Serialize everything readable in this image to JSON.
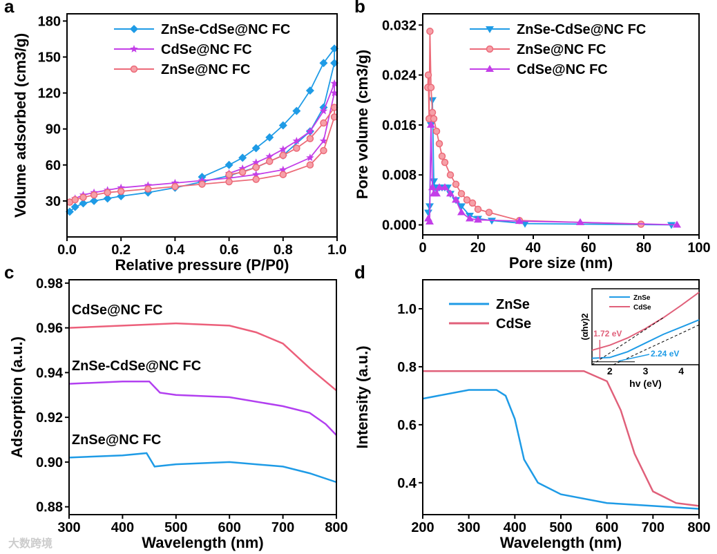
{
  "watermark": "大数跨境",
  "chart_data": [
    {
      "panel": "a",
      "type": "line",
      "xlabel": "Relative pressure (P/P0)",
      "ylabel": "Volume adsorbed (cm3/g)",
      "xlim": [
        0,
        1
      ],
      "ylim": [
        0,
        186
      ],
      "xticks": [
        0,
        0.2,
        0.4,
        0.6,
        0.8,
        1.0
      ],
      "xticklabels": [
        "0.0",
        "0.2",
        "0.4",
        "0.6",
        "0.8",
        "1.0"
      ],
      "yticks": [
        30,
        60,
        90,
        120,
        150,
        180
      ],
      "yticklabels": [
        "30",
        "60",
        "90",
        "120",
        "150",
        "180"
      ],
      "legend": "top-left",
      "series": [
        {
          "name": "ZnSe-CdSe@NC FC",
          "color": "#1e9be6",
          "marker": "diamond",
          "x": [
            0.01,
            0.03,
            0.06,
            0.1,
            0.15,
            0.2,
            0.3,
            0.4,
            0.5,
            0.6,
            0.7,
            0.8,
            0.9,
            0.95,
            0.99,
            0.99,
            0.95,
            0.9,
            0.85,
            0.8,
            0.75,
            0.7,
            0.65,
            0.6,
            0.5
          ],
          "y": [
            21,
            25,
            28,
            30,
            32,
            34,
            37,
            41,
            46,
            51,
            58,
            68,
            88,
            108,
            145,
            157,
            145,
            122,
            105,
            93,
            83,
            74,
            66,
            60,
            50
          ]
        },
        {
          "name": "CdSe@NC FC",
          "color": "#c33ee8",
          "marker": "star",
          "x": [
            0.01,
            0.03,
            0.06,
            0.1,
            0.15,
            0.2,
            0.3,
            0.4,
            0.5,
            0.6,
            0.7,
            0.8,
            0.9,
            0.95,
            0.99,
            0.99,
            0.95,
            0.9,
            0.85,
            0.8,
            0.75,
            0.7,
            0.65,
            0.6
          ],
          "y": [
            29,
            32,
            35,
            37,
            39,
            41,
            43,
            45,
            47,
            49,
            52,
            56,
            66,
            80,
            120,
            128,
            105,
            88,
            80,
            73,
            67,
            62,
            57,
            53
          ]
        },
        {
          "name": "ZnSe@NC FC",
          "color": "#ec6a78",
          "marker": "circle",
          "x": [
            0.01,
            0.03,
            0.06,
            0.1,
            0.15,
            0.2,
            0.3,
            0.4,
            0.5,
            0.6,
            0.7,
            0.8,
            0.9,
            0.95,
            0.99,
            0.99,
            0.95,
            0.9,
            0.85,
            0.8,
            0.75,
            0.7,
            0.65,
            0.6
          ],
          "y": [
            29,
            31,
            33,
            35,
            37,
            38,
            40,
            42,
            44,
            46,
            48,
            52,
            60,
            72,
            100,
            108,
            95,
            82,
            74,
            68,
            63,
            58,
            54,
            52
          ]
        }
      ]
    },
    {
      "panel": "b",
      "type": "line",
      "xlabel": "Pore size (nm)",
      "ylabel": "Pore volume (cm3/g)",
      "xlim": [
        0,
        100
      ],
      "ylim": [
        -0.0016,
        0.0338
      ],
      "xticks": [
        0,
        20,
        40,
        60,
        80,
        100
      ],
      "xticklabels": [
        "0",
        "20",
        "40",
        "60",
        "80",
        "100"
      ],
      "yticks": [
        0,
        0.008,
        0.016,
        0.024,
        0.032
      ],
      "yticklabels": [
        "0.000",
        "0.008",
        "0.016",
        "0.024",
        "0.032"
      ],
      "legend": "top-right",
      "series": [
        {
          "name": "ZnSe-CdSe@NC FC",
          "color": "#1e9be6",
          "marker": "tri-down",
          "x": [
            2,
            2.5,
            3,
            3.5,
            4,
            4.5,
            5,
            6,
            7,
            8,
            9,
            10,
            12,
            14,
            17,
            20,
            25,
            37,
            90
          ],
          "y": [
            0.002,
            0.003,
            0.016,
            0.02,
            0.007,
            0.006,
            0.006,
            0.006,
            0.006,
            0.006,
            0.006,
            0.005,
            0.004,
            0.003,
            0.0015,
            0.001,
            0.0007,
            0.0002,
            0
          ]
        },
        {
          "name": "ZnSe@NC FC",
          "color": "#ec6a78",
          "marker": "circle",
          "x": [
            1.8,
            2,
            2.3,
            2.6,
            3,
            3.5,
            4,
            5,
            6,
            7,
            8,
            10,
            12,
            14,
            16,
            18,
            20,
            24,
            35,
            79
          ],
          "y": [
            0.022,
            0.024,
            0.017,
            0.031,
            0.022,
            0.018,
            0.017,
            0.015,
            0.013,
            0.011,
            0.01,
            0.008,
            0.0065,
            0.005,
            0.004,
            0.0035,
            0.0025,
            0.002,
            0.0007,
            0.0001
          ]
        },
        {
          "name": "CdSe@NC FC",
          "color": "#c33ee8",
          "marker": "tri-up",
          "x": [
            2,
            2.5,
            3,
            3.5,
            4,
            5,
            6,
            8,
            10,
            12,
            14,
            17,
            20,
            35,
            57,
            92
          ],
          "y": [
            0.001,
            0.0005,
            0.016,
            0.006,
            0.005,
            0.005,
            0.006,
            0.006,
            0.005,
            0.004,
            0.002,
            0.001,
            0.0008,
            0.0006,
            0.0004,
            0
          ]
        }
      ]
    },
    {
      "panel": "c",
      "type": "line",
      "xlabel": "Wavelength (nm)",
      "ylabel": "Adsorption (a.u.)",
      "xlim": [
        300,
        800
      ],
      "ylim": [
        0.8765,
        0.9815
      ],
      "xticks": [
        300,
        400,
        500,
        600,
        700,
        800
      ],
      "xticklabels": [
        "300",
        "400",
        "500",
        "600",
        "700",
        "800"
      ],
      "yticks": [
        0.88,
        0.9,
        0.92,
        0.94,
        0.96,
        0.98
      ],
      "yticklabels": [
        "0.88",
        "0.90",
        "0.92",
        "0.94",
        "0.96",
        "0.98"
      ],
      "series": [
        {
          "name": "CdSe@NC FC",
          "color": "#ec5f7a",
          "label_at": [
            305,
            0.966
          ],
          "x": [
            300,
            400,
            500,
            600,
            650,
            700,
            750,
            800
          ],
          "y": [
            0.96,
            0.961,
            0.962,
            0.961,
            0.958,
            0.953,
            0.942,
            0.932
          ]
        },
        {
          "name": "ZnSe-CdSe@NC FC",
          "color": "#b23ff0",
          "label_at": [
            305,
            0.941
          ],
          "x": [
            300,
            400,
            450,
            470,
            500,
            600,
            700,
            750,
            780,
            800
          ],
          "y": [
            0.935,
            0.936,
            0.936,
            0.931,
            0.93,
            0.929,
            0.925,
            0.922,
            0.917,
            0.912
          ]
        },
        {
          "name": "ZnSe@NC FC",
          "color": "#1e9be6",
          "label_at": [
            305,
            0.908
          ],
          "x": [
            300,
            400,
            445,
            460,
            500,
            600,
            700,
            750,
            800
          ],
          "y": [
            0.902,
            0.903,
            0.904,
            0.898,
            0.899,
            0.9,
            0.898,
            0.895,
            0.891
          ]
        }
      ]
    },
    {
      "panel": "d",
      "type": "line",
      "xlabel": "Wavelength (nm)",
      "ylabel": "Intensity (a.u.)",
      "xlim": [
        200,
        800
      ],
      "ylim": [
        0.29,
        1.1
      ],
      "xticks": [
        200,
        300,
        400,
        500,
        600,
        700,
        800
      ],
      "xticklabels": [
        "200",
        "300",
        "400",
        "500",
        "600",
        "700",
        "800"
      ],
      "yticks": [
        0.4,
        0.6,
        0.8,
        1.0
      ],
      "yticklabels": [
        "0.4",
        "0.6",
        "0.8",
        "1.0"
      ],
      "legend": "top-left",
      "series": [
        {
          "name": "ZnSe",
          "color": "#1e9be6",
          "x": [
            200,
            300,
            360,
            380,
            400,
            420,
            450,
            500,
            600,
            700,
            800
          ],
          "y": [
            0.69,
            0.72,
            0.72,
            0.7,
            0.62,
            0.48,
            0.4,
            0.36,
            0.33,
            0.32,
            0.31
          ]
        },
        {
          "name": "CdSe",
          "color": "#e0607a",
          "x": [
            200,
            400,
            550,
            600,
            630,
            660,
            700,
            750,
            800
          ],
          "y": [
            0.785,
            0.785,
            0.785,
            0.75,
            0.65,
            0.5,
            0.37,
            0.33,
            0.32
          ]
        }
      ],
      "inset": {
        "xlabel": "hv (eV)",
        "ylabel": "(αhv)2",
        "xlim": [
          1.5,
          4.5
        ],
        "ylim": [
          0,
          1.05
        ],
        "xticks": [
          2,
          3,
          4
        ],
        "xticklabels": [
          "2",
          "3",
          "4"
        ],
        "series": [
          {
            "name": "ZnSe",
            "color": "#1e9be6",
            "x": [
              1.5,
              2,
              2.5,
              3,
              3.5,
              4,
              4.5
            ],
            "y": [
              0.09,
              0.1,
              0.18,
              0.3,
              0.42,
              0.52,
              0.62
            ]
          },
          {
            "name": "CdSe",
            "color": "#e0607a",
            "x": [
              1.5,
              2,
              2.5,
              3,
              3.5,
              4,
              4.5
            ],
            "y": [
              0.2,
              0.27,
              0.37,
              0.5,
              0.65,
              0.82,
              1.0
            ]
          }
        ],
        "annotations": [
          {
            "text": "1.72 eV",
            "color": "#e0607a",
            "value": 1.72
          },
          {
            "text": "2.24 eV",
            "color": "#1e9be6",
            "value": 2.24
          }
        ]
      }
    }
  ],
  "panel_labels": [
    "a",
    "b",
    "c",
    "d"
  ]
}
